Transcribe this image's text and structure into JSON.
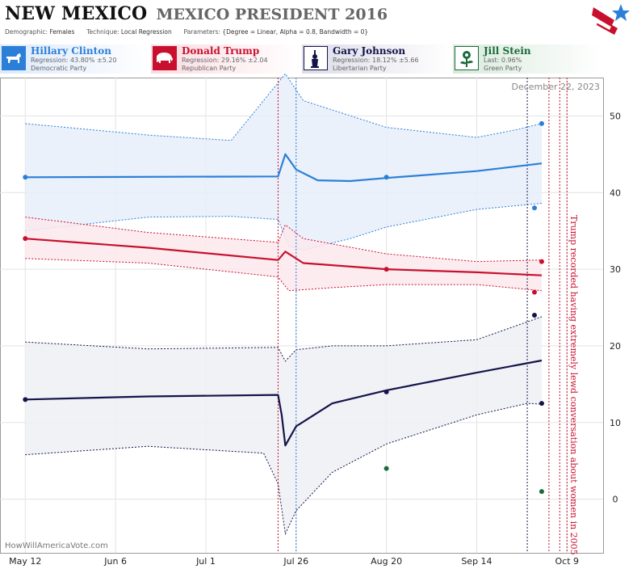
{
  "header": {
    "state": "NEW MEXICO",
    "race": "MEXICO PRESIDENT 2016",
    "demographic_label": "Demographic:",
    "demographic_value": "Females",
    "technique_label": "Technique:",
    "technique_value": "Local Regression",
    "parameters_label": "Parameters:",
    "parameters_value": "{Degree = Linear, Alpha = 0.8, Bandwidth = 0}"
  },
  "candidates": [
    {
      "name": "Hillary Clinton",
      "line1": "Regression: 43.80% ±5.20",
      "line2": "Democratic Party",
      "color": "#2b7fd8",
      "icon": "donkey-icon"
    },
    {
      "name": "Donald Trump",
      "line1": "Regression: 29.16% ±2.04",
      "line2": "Republican Party",
      "color": "#c8102e",
      "icon": "elephant-icon"
    },
    {
      "name": "Gary Johnson",
      "line1": "Regression: 18.12% ±5.66",
      "line2": "Libertarian Party",
      "color": "#14144a",
      "icon": "liberty-icon"
    },
    {
      "name": "Jill Stein",
      "line1": "Last: 0.96%",
      "line2": "Green Party",
      "color": "#1a6b3a",
      "icon": "flower-icon"
    }
  ],
  "chart_data": {
    "type": "line",
    "date_stamp": "December 22, 2023",
    "credit": "HowWillAmericaVote.com",
    "annotation": "Trump recorded having extremely lewd conversation about women in 2005",
    "x_tick_labels": [
      "May 12",
      "Jun 6",
      "Jul 1",
      "Jul 26",
      "Aug 20",
      "Sep 14",
      "Oct 9"
    ],
    "x_ticks": [
      "2016-05-12",
      "2016-06-06",
      "2016-07-01",
      "2016-07-26",
      "2016-08-20",
      "2016-09-14",
      "2016-10-09"
    ],
    "x_range": [
      "2016-05-05",
      "2016-10-19"
    ],
    "y_ticks": [
      0,
      10,
      20,
      30,
      40,
      50
    ],
    "ylim": [
      -7,
      55
    ],
    "grid": true,
    "event_lines": [
      {
        "date": "2016-07-21",
        "color": "#c8102e"
      },
      {
        "date": "2016-07-26",
        "color": "#2b7fd8"
      },
      {
        "date": "2016-09-28",
        "color": "#14144a"
      },
      {
        "date": "2016-10-04",
        "color": "#c8102e"
      },
      {
        "date": "2016-10-07",
        "color": "#c8102e"
      },
      {
        "date": "2016-10-09",
        "color": "#c8102e"
      }
    ],
    "series": [
      {
        "name": "Hillary Clinton",
        "color": "#2b7fd8",
        "fill": "#e6eefa",
        "line": [
          [
            "2016-05-12",
            42.0
          ],
          [
            "2016-07-21",
            42.1
          ],
          [
            "2016-07-23",
            45.0
          ],
          [
            "2016-07-26",
            43.0
          ],
          [
            "2016-08-01",
            41.6
          ],
          [
            "2016-08-10",
            41.5
          ],
          [
            "2016-08-20",
            41.9
          ],
          [
            "2016-09-14",
            42.8
          ],
          [
            "2016-10-02",
            43.8
          ]
        ],
        "upper": [
          [
            "2016-05-12",
            49.0
          ],
          [
            "2016-06-15",
            47.5
          ],
          [
            "2016-07-08",
            46.8
          ],
          [
            "2016-07-23",
            55.5
          ],
          [
            "2016-07-28",
            52.0
          ],
          [
            "2016-08-20",
            48.5
          ],
          [
            "2016-09-14",
            47.2
          ],
          [
            "2016-09-25",
            48.2
          ],
          [
            "2016-10-02",
            49.0
          ]
        ],
        "lower": [
          [
            "2016-05-12",
            35.0
          ],
          [
            "2016-06-15",
            36.8
          ],
          [
            "2016-07-08",
            36.9
          ],
          [
            "2016-07-21",
            36.5
          ],
          [
            "2016-07-24",
            33.0
          ],
          [
            "2016-07-28",
            32.5
          ],
          [
            "2016-08-10",
            34.0
          ],
          [
            "2016-08-20",
            35.5
          ],
          [
            "2016-09-14",
            37.8
          ],
          [
            "2016-10-02",
            38.6
          ]
        ],
        "points": [
          [
            "2016-05-12",
            42.0
          ],
          [
            "2016-08-20",
            42.0
          ],
          [
            "2016-09-30",
            38.0
          ],
          [
            "2016-10-02",
            49.0
          ]
        ]
      },
      {
        "name": "Donald Trump",
        "color": "#c8102e",
        "fill": "#fbe9ed",
        "line": [
          [
            "2016-05-12",
            34.0
          ],
          [
            "2016-06-15",
            32.8
          ],
          [
            "2016-07-21",
            31.2
          ],
          [
            "2016-07-23",
            32.3
          ],
          [
            "2016-07-28",
            30.8
          ],
          [
            "2016-08-20",
            30.0
          ],
          [
            "2016-09-14",
            29.6
          ],
          [
            "2016-10-02",
            29.2
          ]
        ],
        "upper": [
          [
            "2016-05-12",
            36.8
          ],
          [
            "2016-06-15",
            34.8
          ],
          [
            "2016-07-21",
            33.5
          ],
          [
            "2016-07-23",
            35.8
          ],
          [
            "2016-07-28",
            34.0
          ],
          [
            "2016-08-20",
            32.0
          ],
          [
            "2016-09-14",
            31.0
          ],
          [
            "2016-10-02",
            31.2
          ]
        ],
        "lower": [
          [
            "2016-05-12",
            31.4
          ],
          [
            "2016-06-15",
            30.8
          ],
          [
            "2016-07-21",
            29.0
          ],
          [
            "2016-07-24",
            27.2
          ],
          [
            "2016-08-05",
            27.6
          ],
          [
            "2016-08-20",
            28.0
          ],
          [
            "2016-09-14",
            28.0
          ],
          [
            "2016-10-02",
            27.2
          ]
        ],
        "points": [
          [
            "2016-05-12",
            34.0
          ],
          [
            "2016-08-20",
            30.0
          ],
          [
            "2016-09-30",
            27.0
          ],
          [
            "2016-10-02",
            31.0
          ]
        ]
      },
      {
        "name": "Gary Johnson",
        "color": "#14144a",
        "fill": "#eef0f5",
        "line": [
          [
            "2016-05-12",
            13.0
          ],
          [
            "2016-06-15",
            13.4
          ],
          [
            "2016-07-21",
            13.6
          ],
          [
            "2016-07-22",
            11.0
          ],
          [
            "2016-07-23",
            7.0
          ],
          [
            "2016-07-26",
            9.5
          ],
          [
            "2016-08-05",
            12.5
          ],
          [
            "2016-08-20",
            14.2
          ],
          [
            "2016-09-14",
            16.5
          ],
          [
            "2016-10-02",
            18.1
          ]
        ],
        "upper": [
          [
            "2016-05-12",
            20.5
          ],
          [
            "2016-06-15",
            19.6
          ],
          [
            "2016-07-21",
            19.8
          ],
          [
            "2016-07-23",
            18.0
          ],
          [
            "2016-07-26",
            19.5
          ],
          [
            "2016-08-05",
            20.0
          ],
          [
            "2016-08-20",
            20.0
          ],
          [
            "2016-09-14",
            20.8
          ],
          [
            "2016-10-02",
            23.8
          ]
        ],
        "lower": [
          [
            "2016-05-12",
            5.8
          ],
          [
            "2016-06-15",
            6.9
          ],
          [
            "2016-07-17",
            6.0
          ],
          [
            "2016-07-21",
            2.0
          ],
          [
            "2016-07-23",
            -4.5
          ],
          [
            "2016-07-26",
            -1.5
          ],
          [
            "2016-08-05",
            3.5
          ],
          [
            "2016-08-20",
            7.2
          ],
          [
            "2016-09-14",
            11.0
          ],
          [
            "2016-09-28",
            12.5
          ],
          [
            "2016-10-02",
            12.4
          ]
        ],
        "points": [
          [
            "2016-05-12",
            13.0
          ],
          [
            "2016-08-20",
            14.0
          ],
          [
            "2016-09-30",
            24.0
          ],
          [
            "2016-10-02",
            12.5
          ]
        ]
      },
      {
        "name": "Jill Stein",
        "color": "#1a6b3a",
        "points": [
          [
            "2016-08-20",
            4.0
          ],
          [
            "2016-10-02",
            1.0
          ]
        ]
      }
    ]
  }
}
